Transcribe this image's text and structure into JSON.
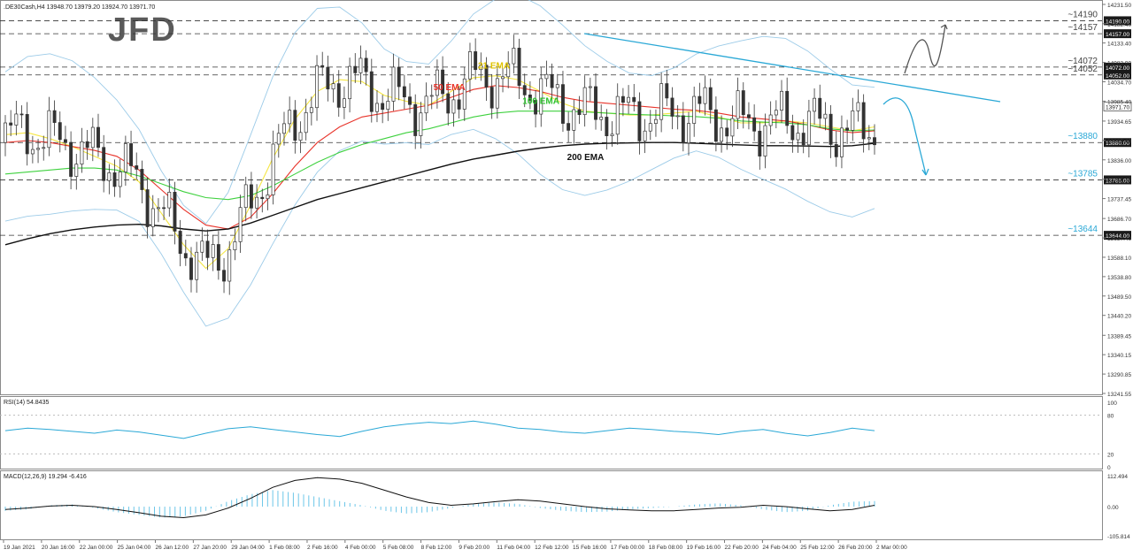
{
  "chart_title": ".DE30Cash,H4  13948.70 13979.20 13924.70 13971.70",
  "logo_text": "JFD",
  "colors": {
    "candle": "#333333",
    "ema21": "#f5e642",
    "ema50": "#e8332a",
    "ema100": "#3ed13e",
    "ema200": "#111111",
    "bollinger": "#9ccbe8",
    "trendline": "#2aa8d6",
    "level_label": "#2aa8d6",
    "resistance_label": "#444444",
    "rsi_line": "#2aa8d6",
    "macd_hist": "#6cc6e8",
    "macd_signal": "#111111"
  },
  "chart_data": {
    "type": "line",
    "price_axis": {
      "ticks": [
        14231.5,
        14182.4,
        14133.4,
        14083.9,
        14034.7,
        13985.4,
        13934.65,
        13885.4,
        13836.0,
        13786.75,
        13737.45,
        13686.7,
        13637.4,
        13588.1,
        13538.8,
        13489.5,
        13440.2,
        13389.45,
        13340.15,
        13290.85,
        13241.55
      ],
      "ylim": [
        13241.55,
        14231.5
      ]
    },
    "time_axis": [
      "19 Jan 2021",
      "20 Jan 16:00",
      "22 Jan 00:00",
      "25 Jan 04:00",
      "26 Jan 12:00",
      "27 Jan 20:00",
      "29 Jan 04:00",
      "1 Feb 08:00",
      "2 Feb 16:00",
      "4 Feb 00:00",
      "5 Feb 08:00",
      "8 Feb 12:00",
      "9 Feb 20:00",
      "11 Feb 04:00",
      "12 Feb 12:00",
      "15 Feb 16:00",
      "17 Feb 00:00",
      "18 Feb 08:00",
      "19 Feb 16:00",
      "22 Feb 20:00",
      "24 Feb 04:00",
      "25 Feb 12:00",
      "26 Feb 20:00",
      "2 Mar 00:00"
    ],
    "levels": [
      {
        "value": 14190,
        "label": "~14190",
        "axis_label": "14190.00"
      },
      {
        "value": 14157,
        "label": "~14157",
        "axis_label": "14157.00"
      },
      {
        "value": 14072,
        "label": "~14072",
        "axis_label": "14072.00"
      },
      {
        "value": 14052,
        "label": "~14052",
        "axis_label": "14052.00"
      },
      {
        "value": 13880,
        "label": "~13880",
        "axis_label": "13880.00"
      },
      {
        "value": 13785,
        "label": "~13785",
        "axis_label": "13785.00"
      },
      {
        "value": 13644,
        "label": "~13644",
        "axis_label": "13644.00"
      }
    ],
    "current_price": {
      "value": 13971.7,
      "label": "13971.70"
    },
    "series": [
      {
        "name": "21 EMA",
        "values": [
          13900,
          13905,
          13890,
          13870,
          13845,
          13820,
          13780,
          13700,
          13620,
          13560,
          13610,
          13720,
          13840,
          13940,
          14010,
          14040,
          14035,
          14000,
          13985,
          13975,
          14010,
          14045,
          14050,
          14040,
          14010,
          13980,
          13960,
          13955,
          13950,
          13950,
          13955,
          13960,
          13945,
          13930,
          13930,
          13935,
          13930,
          13920,
          13910,
          13920
        ]
      },
      {
        "name": "50 EMA",
        "values": [
          13880,
          13885,
          13880,
          13870,
          13860,
          13845,
          13810,
          13760,
          13710,
          13670,
          13660,
          13690,
          13750,
          13820,
          13880,
          13920,
          13945,
          13955,
          13965,
          13975,
          13995,
          14015,
          14025,
          14020,
          14010,
          13995,
          13985,
          13980,
          13975,
          13970,
          13965,
          13962,
          13955,
          13945,
          13940,
          13935,
          13925,
          13912,
          13905,
          13910
        ]
      },
      {
        "name": "100 EMA",
        "values": [
          13800,
          13805,
          13810,
          13815,
          13815,
          13810,
          13795,
          13775,
          13755,
          13740,
          13735,
          13745,
          13770,
          13800,
          13830,
          13855,
          13875,
          13890,
          13905,
          13915,
          13930,
          13945,
          13955,
          13960,
          13960,
          13960,
          13958,
          13955,
          13952,
          13950,
          13948,
          13946,
          13942,
          13935,
          13932,
          13930,
          13925,
          13915,
          13910,
          13912
        ]
      },
      {
        "name": "200 EMA",
        "values": [
          13620,
          13635,
          13648,
          13658,
          13665,
          13670,
          13672,
          13668,
          13660,
          13655,
          13660,
          13675,
          13695,
          13715,
          13735,
          13750,
          13765,
          13780,
          13795,
          13810,
          13825,
          13838,
          13848,
          13858,
          13866,
          13872,
          13876,
          13878,
          13879,
          13880,
          13880,
          13878,
          13876,
          13874,
          13872,
          13872,
          13871,
          13870,
          13872,
          13878
        ]
      }
    ],
    "rsi": {
      "label": "RSI(14) 54.8435",
      "ticks": [
        100,
        80,
        20,
        0
      ],
      "values": [
        56,
        60,
        58,
        55,
        52,
        57,
        54,
        49,
        44,
        52,
        59,
        62,
        58,
        54,
        50,
        47,
        55,
        62,
        66,
        69,
        67,
        71,
        66,
        60,
        58,
        54,
        52,
        56,
        60,
        58,
        55,
        53,
        50,
        55,
        58,
        52,
        48,
        53,
        60,
        56
      ]
    },
    "macd": {
      "label": "MACD(12,26,9) 19.294 -6.416",
      "ticks": [
        "112.494",
        "0.00",
        "-105.814"
      ],
      "signal": [
        -10,
        -5,
        2,
        5,
        0,
        -10,
        -22,
        -35,
        -40,
        -30,
        -5,
        30,
        70,
        95,
        105,
        100,
        85,
        60,
        35,
        15,
        5,
        10,
        18,
        25,
        20,
        10,
        0,
        -8,
        -12,
        -15,
        -15,
        -10,
        -5,
        -2,
        5,
        0,
        -8,
        -15,
        -10,
        5
      ],
      "hist": [
        -15,
        -10,
        5,
        8,
        -5,
        -20,
        -30,
        -40,
        -35,
        -15,
        20,
        45,
        60,
        50,
        35,
        20,
        5,
        -15,
        -25,
        -20,
        -5,
        10,
        15,
        10,
        -5,
        -15,
        -20,
        -18,
        -10,
        -5,
        0,
        8,
        12,
        5,
        -10,
        -20,
        -15,
        5,
        18,
        20
      ]
    }
  }
}
